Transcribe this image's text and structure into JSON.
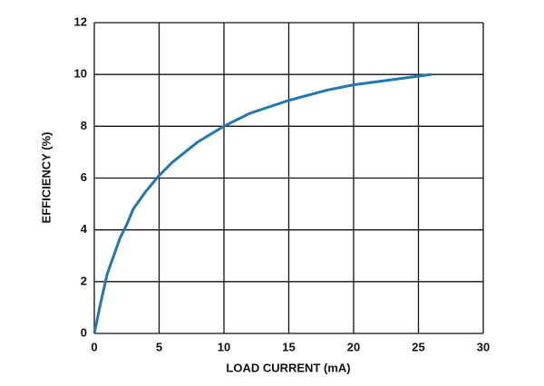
{
  "chart_data": {
    "type": "line",
    "xlabel": "LOAD CURRENT (mA)",
    "ylabel": "EFFICIENCY (%)",
    "x": [
      0,
      0.5,
      1,
      2,
      2.5,
      3,
      4,
      5,
      6,
      8,
      10,
      12,
      15,
      18,
      20,
      23,
      26
    ],
    "series": [
      {
        "name": "efficiency",
        "color": "#2277b0",
        "values": [
          0,
          1.2,
          2.3,
          3.7,
          4.2,
          4.8,
          5.5,
          6.1,
          6.6,
          7.4,
          8,
          8.5,
          9,
          9.4,
          9.6,
          9.8,
          10
        ]
      }
    ],
    "xlim": [
      0,
      30
    ],
    "xticks": [
      0,
      5,
      10,
      15,
      20,
      25,
      30
    ],
    "ylim": [
      0,
      12
    ],
    "yticks": [
      0,
      2,
      4,
      6,
      8,
      10,
      12
    ],
    "grid": true
  }
}
